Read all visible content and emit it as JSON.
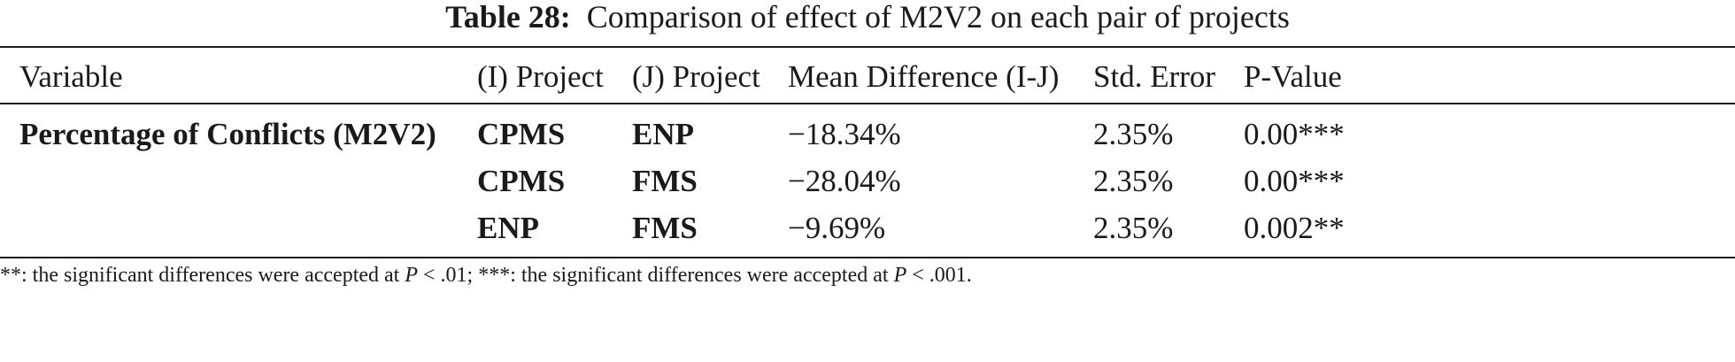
{
  "caption": {
    "label": "Table 28:",
    "text": "Comparison of effect of M2V2 on each pair of projects"
  },
  "table": {
    "headers": [
      "Variable",
      "(I) Project",
      "(J) Project",
      "Mean Difference (I-J)",
      "Std. Error",
      "P-Value"
    ],
    "variable": "Percentage of Conflicts (M2V2)",
    "rows": [
      {
        "i": "CPMS",
        "j": "ENP",
        "mean_diff": "−18.34%",
        "std_error": "2.35%",
        "p_value": "0.00***"
      },
      {
        "i": "CPMS",
        "j": "FMS",
        "mean_diff": "−28.04%",
        "std_error": "2.35%",
        "p_value": "0.00***"
      },
      {
        "i": "ENP",
        "j": "FMS",
        "mean_diff": "−9.69%",
        "std_error": "2.35%",
        "p_value": "0.002**"
      }
    ]
  },
  "footnote": {
    "part1": "**: the significant differences were accepted at ",
    "p1": "P",
    "part2": " < .01; ***: the significant differences were accepted at ",
    "p2": "P",
    "part3": " < .001."
  }
}
